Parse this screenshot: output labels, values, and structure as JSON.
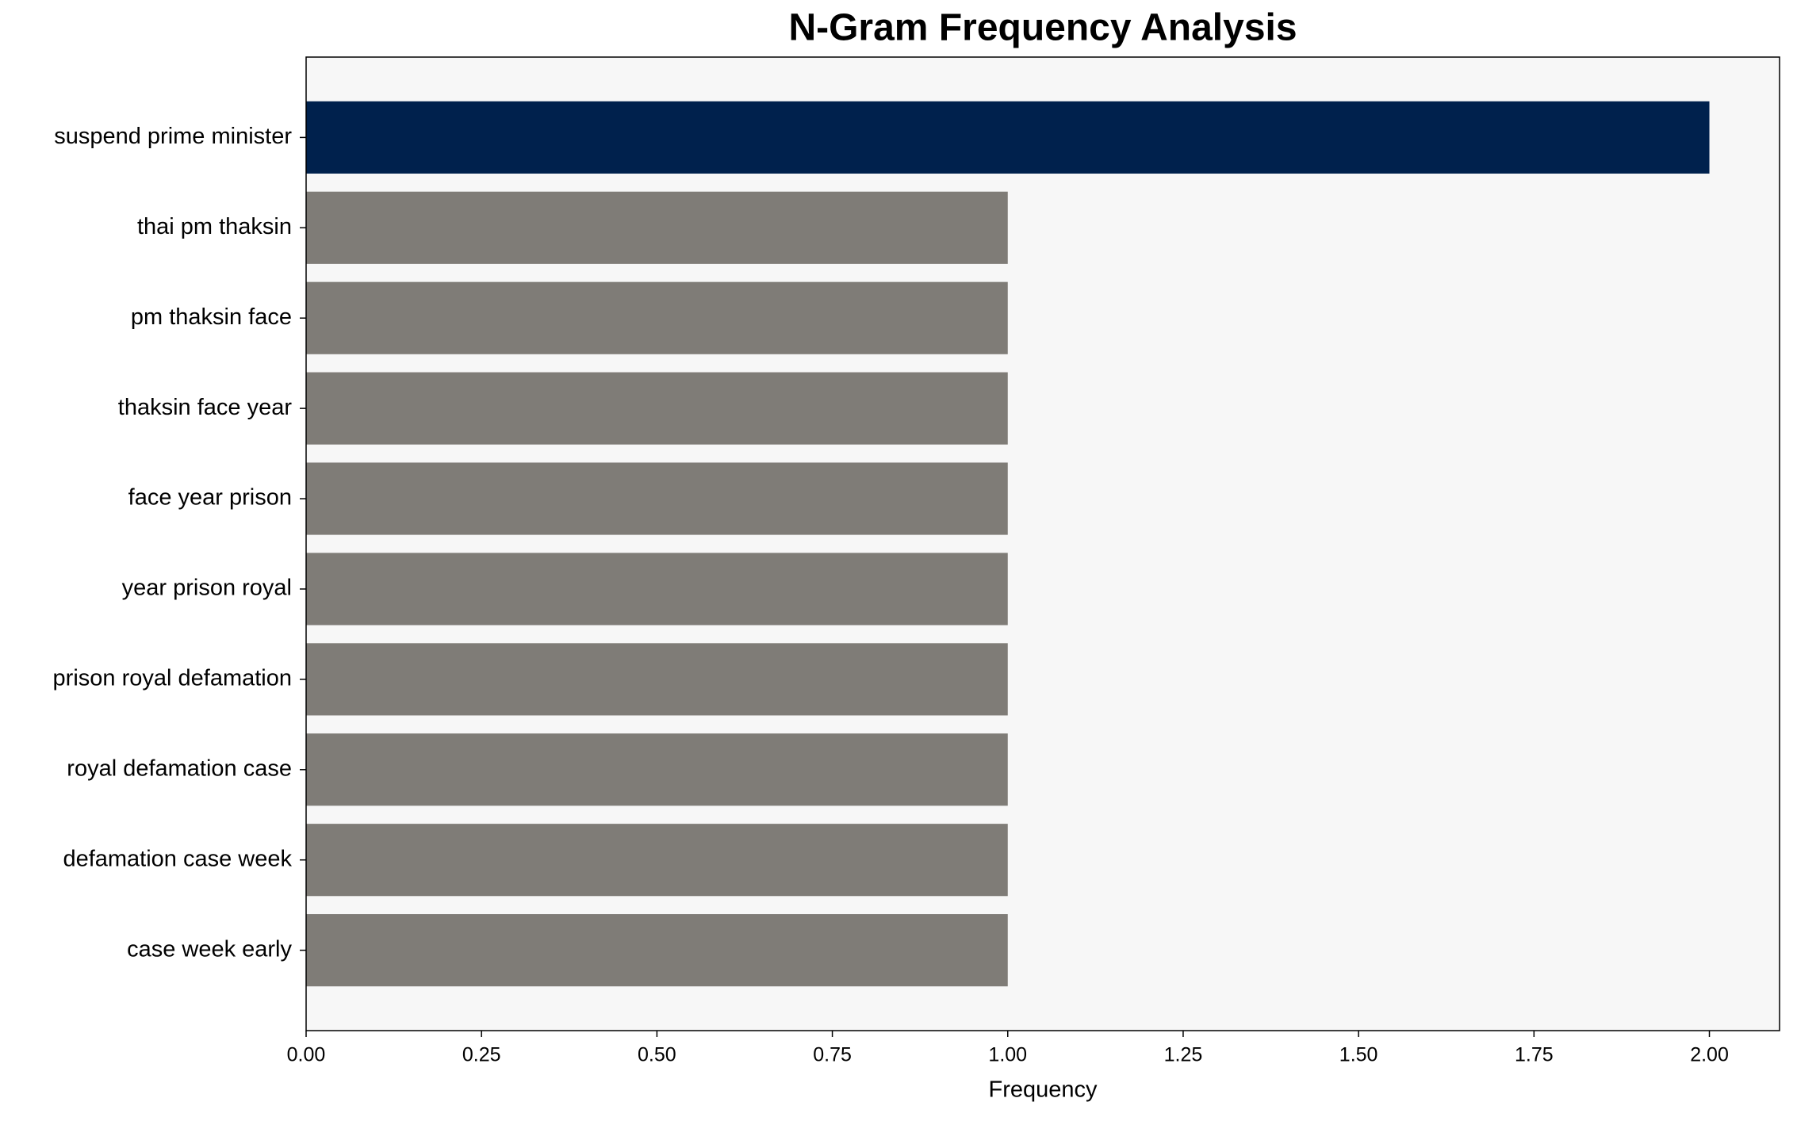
{
  "chart_data": {
    "type": "bar",
    "orientation": "horizontal",
    "title": "N-Gram Frequency Analysis",
    "x_label": "Frequency",
    "categories": [
      "suspend prime minister",
      "thai pm thaksin",
      "pm thaksin face",
      "thaksin face year",
      "face year prison",
      "year prison royal",
      "prison royal defamation",
      "royal defamation case",
      "defamation case week",
      "case week early"
    ],
    "values": [
      2,
      1,
      1,
      1,
      1,
      1,
      1,
      1,
      1,
      1
    ],
    "colors": [
      "#00214d",
      "#7f7c77",
      "#7f7c77",
      "#7f7c77",
      "#7f7c77",
      "#7f7c77",
      "#7f7c77",
      "#7f7c77",
      "#7f7c77",
      "#7f7c77"
    ],
    "xlim": [
      0,
      2.1
    ],
    "xticks": [
      {
        "value": 0,
        "label": "0.00"
      },
      {
        "value": 0.25,
        "label": "0.25"
      },
      {
        "value": 0.5,
        "label": "0.50"
      },
      {
        "value": 0.75,
        "label": "0.75"
      },
      {
        "value": 1,
        "label": "1.00"
      },
      {
        "value": 1.25,
        "label": "1.25"
      },
      {
        "value": 1.5,
        "label": "1.50"
      },
      {
        "value": 1.75,
        "label": "1.75"
      },
      {
        "value": 2,
        "label": "2.00"
      }
    ],
    "grid": false,
    "plot_background": "#f7f7f7"
  }
}
